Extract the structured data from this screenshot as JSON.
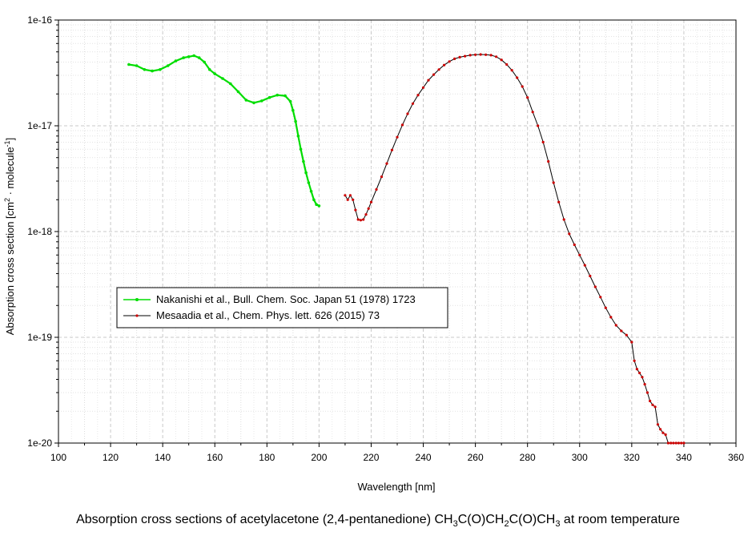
{
  "chart_data": {
    "type": "line",
    "xlabel": "Wavelength [nm]",
    "ylabel_parts": [
      "Absorption cross section [cm",
      "2",
      " · molecule",
      "-1",
      "]"
    ],
    "xlim": [
      100,
      360
    ],
    "ylim": [
      1e-20,
      1e-16
    ],
    "yscale": "log",
    "x_ticks": [
      100,
      120,
      140,
      160,
      180,
      200,
      220,
      240,
      260,
      280,
      300,
      320,
      340,
      360
    ],
    "y_ticks": [
      {
        "value": 1e-16,
        "label": "1e-16"
      },
      {
        "value": 1e-17,
        "label": "1e-17"
      },
      {
        "value": 1e-18,
        "label": "1e-18"
      },
      {
        "value": 1e-19,
        "label": "1e-19"
      },
      {
        "value": 1e-20,
        "label": "1e-20"
      }
    ],
    "grid": true,
    "legend_placement": "lower-left",
    "series": [
      {
        "name": "Nakanishi et al., Bull. Chem. Soc. Japan 51 (1978) 1723",
        "color": "#00dd00",
        "marker_color": "#00dd00",
        "x": [
          127,
          130,
          133,
          136,
          139,
          142,
          145,
          148,
          150,
          152,
          154,
          156,
          158,
          160,
          163,
          166,
          169,
          172,
          175,
          178,
          181,
          184,
          187,
          189,
          190,
          191,
          192,
          193,
          194,
          195,
          196,
          197,
          198,
          199,
          200
        ],
        "y": [
          3.8e-17,
          3.7e-17,
          3.4e-17,
          3.3e-17,
          3.4e-17,
          3.7e-17,
          4.1e-17,
          4.4e-17,
          4.5e-17,
          4.6e-17,
          4.4e-17,
          4e-17,
          3.4e-17,
          3.1e-17,
          2.8e-17,
          2.5e-17,
          2.1e-17,
          1.75e-17,
          1.65e-17,
          1.72e-17,
          1.85e-17,
          1.95e-17,
          1.92e-17,
          1.7e-17,
          1.4e-17,
          1.1e-17,
          8e-18,
          6e-18,
          4.6e-18,
          3.6e-18,
          2.9e-18,
          2.4e-18,
          2e-18,
          1.8e-18,
          1.75e-18
        ]
      },
      {
        "name": "Mesaadia et al., Chem. Phys. lett. 626 (2015) 73",
        "color": "#000000",
        "marker_color": "#cc0000",
        "x": [
          210,
          211,
          212,
          213,
          214,
          215,
          216,
          217,
          218,
          219,
          220,
          222,
          224,
          226,
          228,
          230,
          232,
          234,
          236,
          238,
          240,
          242,
          244,
          246,
          248,
          250,
          252,
          254,
          256,
          258,
          260,
          262,
          264,
          266,
          268,
          270,
          272,
          274,
          276,
          278,
          280,
          282,
          284,
          286,
          288,
          290,
          292,
          294,
          296,
          298,
          300,
          302,
          304,
          306,
          308,
          310,
          312,
          314,
          316,
          318,
          320,
          321,
          322,
          323,
          324,
          325,
          326,
          327,
          328,
          329,
          330,
          331,
          332,
          333,
          334,
          335,
          336,
          337,
          338,
          339,
          340
        ],
        "y": [
          2.2e-18,
          2e-18,
          2.2e-18,
          2e-18,
          1.6e-18,
          1.3e-18,
          1.28e-18,
          1.3e-18,
          1.45e-18,
          1.65e-18,
          1.9e-18,
          2.5e-18,
          3.3e-18,
          4.4e-18,
          5.9e-18,
          7.8e-18,
          1.02e-17,
          1.3e-17,
          1.62e-17,
          1.95e-17,
          2.3e-17,
          2.7e-17,
          3.05e-17,
          3.4e-17,
          3.75e-17,
          4.05e-17,
          4.3e-17,
          4.45e-17,
          4.55e-17,
          4.65e-17,
          4.7e-17,
          4.72e-17,
          4.7e-17,
          4.65e-17,
          4.5e-17,
          4.2e-17,
          3.8e-17,
          3.35e-17,
          2.85e-17,
          2.35e-17,
          1.85e-17,
          1.35e-17,
          1e-17,
          7e-18,
          4.6e-18,
          2.9e-18,
          1.9e-18,
          1.3e-18,
          9.5e-19,
          7.5e-19,
          6e-19,
          4.8e-19,
          3.8e-19,
          3e-19,
          2.4e-19,
          1.9e-19,
          1.55e-19,
          1.3e-19,
          1.15e-19,
          1.05e-19,
          9e-20,
          6e-20,
          5e-20,
          4.6e-20,
          4.2e-20,
          3.6e-20,
          3e-20,
          2.5e-20,
          2.3e-20,
          2.2e-20,
          1.5e-20,
          1.35e-20,
          1.25e-20,
          1.2e-20,
          1e-20,
          1e-20,
          1e-20,
          1e-20,
          1e-20,
          1e-20,
          1e-20
        ]
      }
    ]
  },
  "caption": {
    "parts": [
      "Absorption cross sections of acetylacetone (2,4-pentanedione) CH",
      "3",
      "C(O)CH",
      "2",
      "C(O)CH",
      "3",
      " at room temperature"
    ]
  }
}
